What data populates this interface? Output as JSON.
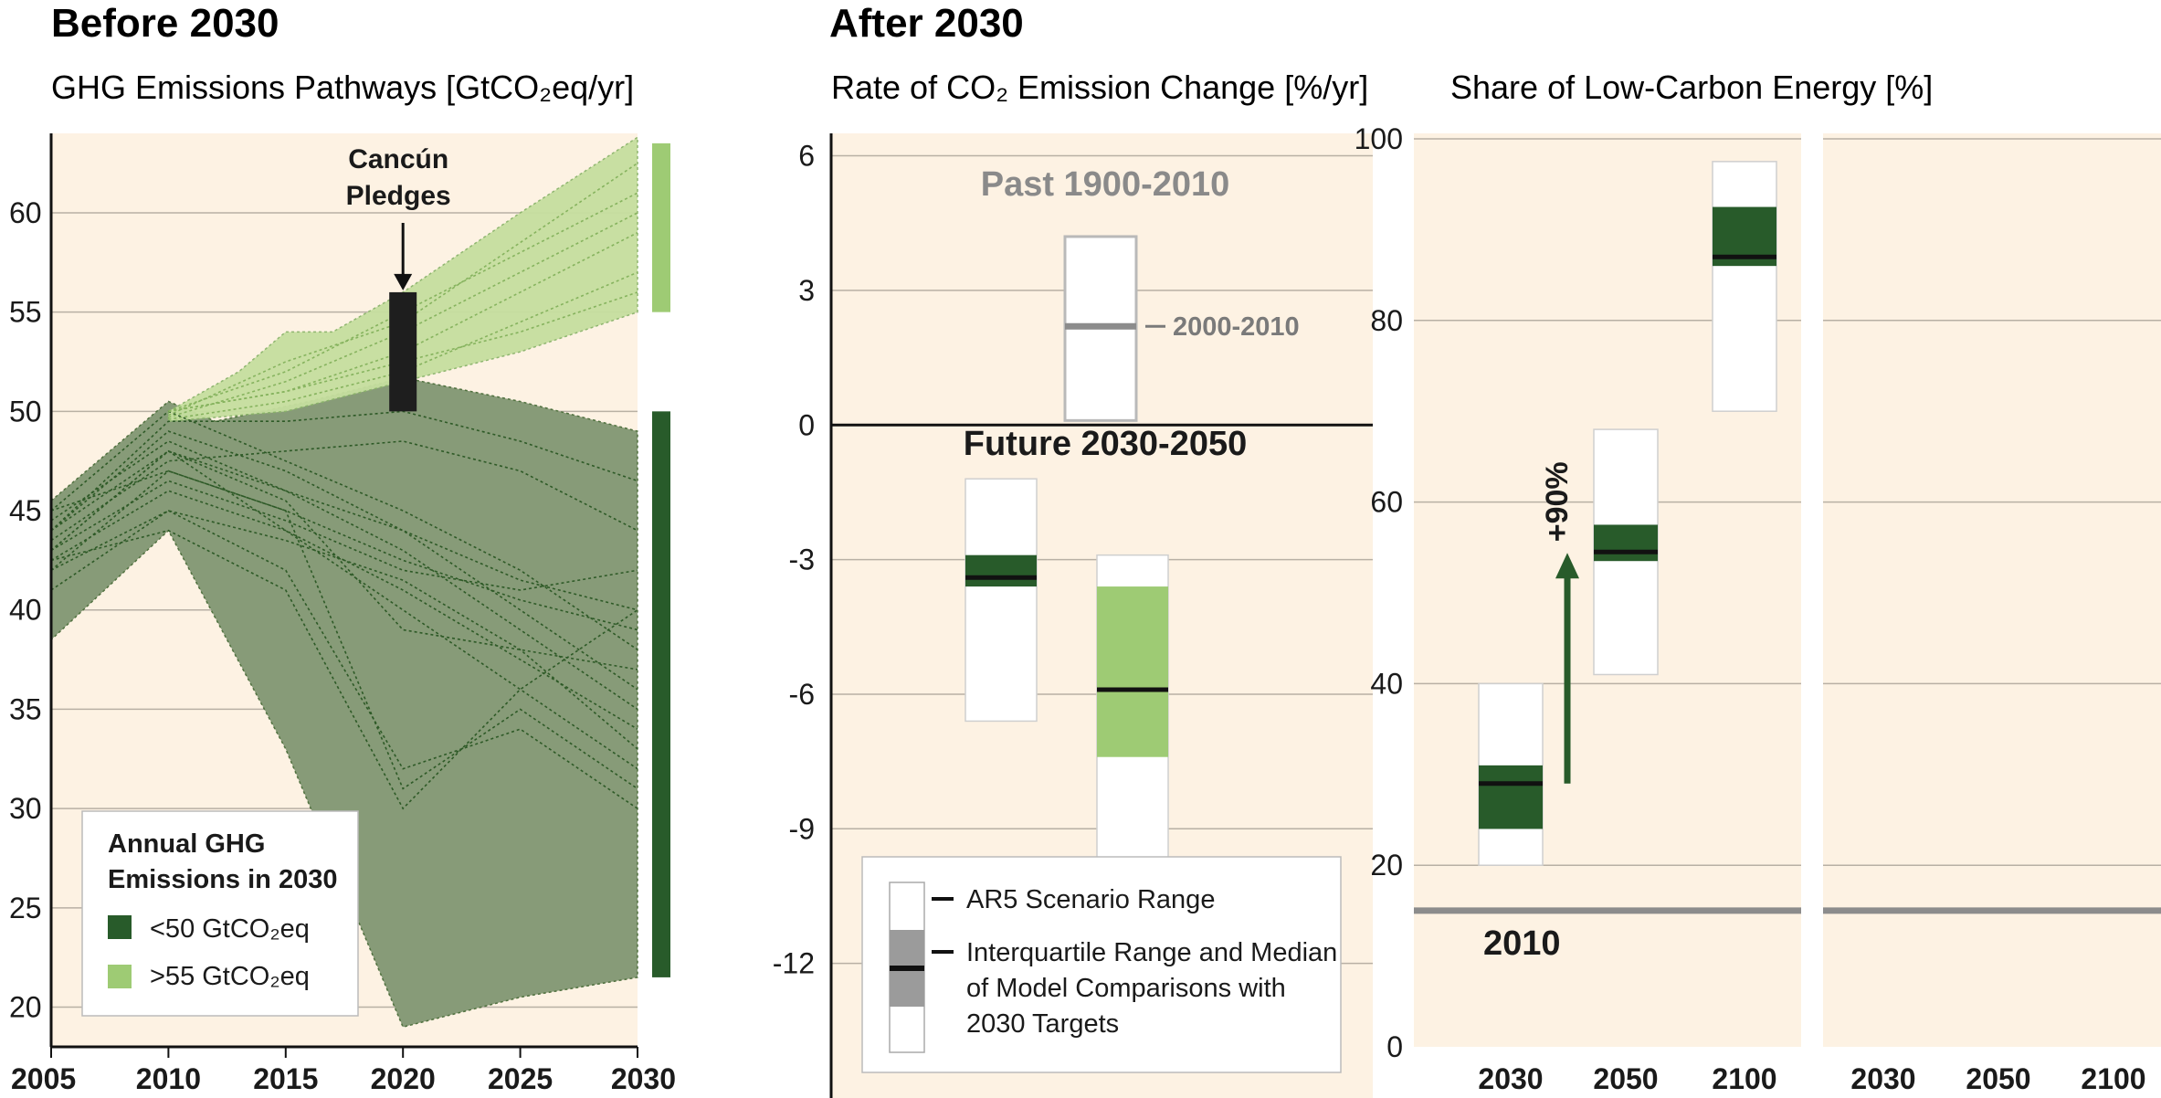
{
  "headers": {
    "before": "Before 2030",
    "after": "After 2030",
    "left_title": "GHG Emissions Pathways [GtCO₂eq/yr]",
    "mid_title": "Rate of CO₂ Emission Change [%/yr]",
    "right_title": "Share of Low-Carbon Energy [%]"
  },
  "colors": {
    "panel_bg": "#fdf2e3",
    "dark_green": "#285b2a",
    "light_green": "#9ecb74",
    "dark_band": "#879b78",
    "light_band": "#c6df9f",
    "grey": "#8c8c8c",
    "gridline": "#b8b0a4"
  },
  "chart_data": [
    {
      "id": "ghg",
      "type": "area",
      "title": "GHG Emissions Pathways [GtCO₂eq/yr]",
      "xlabel": "",
      "ylabel": "",
      "xlim": [
        2005,
        2030
      ],
      "ylim": [
        18,
        64
      ],
      "x_ticks": [
        2005,
        2010,
        2015,
        2020,
        2025,
        2030
      ],
      "y_ticks": [
        20,
        25,
        30,
        35,
        40,
        45,
        50,
        55,
        60
      ],
      "grid": true,
      "bands": [
        {
          "name": "<50 GtCO₂eq",
          "color": "#879b78",
          "upper": [
            [
              2005,
              45.5
            ],
            [
              2010,
              50.5
            ],
            [
              2012,
              49.5
            ],
            [
              2016,
              50.5
            ],
            [
              2020,
              51.7
            ],
            [
              2025,
              50.5
            ],
            [
              2030,
              49
            ]
          ],
          "lower": [
            [
              2005,
              38.5
            ],
            [
              2010,
              44
            ],
            [
              2015,
              33
            ],
            [
              2020,
              19
            ],
            [
              2025,
              20.5
            ],
            [
              2030,
              21.5
            ]
          ]
        },
        {
          "name": ">55 GtCO₂eq",
          "color": "#c6df9f",
          "upper": [
            [
              2010,
              50
            ],
            [
              2013,
              52
            ],
            [
              2015,
              54
            ],
            [
              2017,
              54
            ],
            [
              2020,
              56
            ],
            [
              2025,
              60
            ],
            [
              2030,
              63.8
            ]
          ],
          "lower": [
            [
              2010,
              49.5
            ],
            [
              2015,
              50
            ],
            [
              2020,
              51.5
            ],
            [
              2025,
              53
            ],
            [
              2030,
              55
            ]
          ]
        }
      ],
      "pathways_low": [
        [
          [
            2005,
            45
          ],
          [
            2010,
            50
          ],
          [
            2015,
            47.5
          ],
          [
            2020,
            45
          ],
          [
            2025,
            42
          ],
          [
            2030,
            38
          ]
        ],
        [
          [
            2005,
            44
          ],
          [
            2010,
            49
          ],
          [
            2015,
            47
          ],
          [
            2020,
            44
          ],
          [
            2025,
            40
          ],
          [
            2030,
            36
          ]
        ],
        [
          [
            2005,
            43
          ],
          [
            2010,
            48
          ],
          [
            2015,
            46
          ],
          [
            2020,
            43
          ],
          [
            2025,
            39
          ],
          [
            2030,
            35
          ]
        ],
        [
          [
            2005,
            44.5
          ],
          [
            2010,
            48.5
          ],
          [
            2015,
            46
          ],
          [
            2020,
            44
          ],
          [
            2025,
            41.5
          ],
          [
            2030,
            40
          ]
        ],
        [
          [
            2005,
            42
          ],
          [
            2010,
            47
          ],
          [
            2015,
            45
          ],
          [
            2020,
            42.5
          ],
          [
            2025,
            40.5
          ],
          [
            2030,
            39
          ]
        ],
        [
          [
            2005,
            43.5
          ],
          [
            2010,
            47.5
          ],
          [
            2015,
            48
          ],
          [
            2020,
            48.5
          ],
          [
            2025,
            47
          ],
          [
            2030,
            44
          ]
        ],
        [
          [
            2005,
            42.5
          ],
          [
            2010,
            46
          ],
          [
            2015,
            44
          ],
          [
            2020,
            41
          ],
          [
            2025,
            37.5
          ],
          [
            2030,
            34
          ]
        ],
        [
          [
            2005,
            41
          ],
          [
            2010,
            45
          ],
          [
            2015,
            43.5
          ],
          [
            2020,
            41.5
          ],
          [
            2025,
            38
          ],
          [
            2030,
            33
          ]
        ],
        [
          [
            2005,
            44
          ],
          [
            2010,
            49.5
          ],
          [
            2015,
            49.5
          ],
          [
            2020,
            50
          ],
          [
            2025,
            48.5
          ],
          [
            2030,
            46.5
          ]
        ],
        [
          [
            2005,
            43
          ],
          [
            2010,
            48
          ],
          [
            2015,
            44
          ],
          [
            2020,
            40
          ],
          [
            2025,
            36
          ],
          [
            2030,
            32
          ]
        ],
        [
          [
            2005,
            42
          ],
          [
            2010,
            45
          ],
          [
            2015,
            42
          ],
          [
            2020,
            32
          ],
          [
            2025,
            34
          ],
          [
            2030,
            30
          ]
        ],
        [
          [
            2005,
            45
          ],
          [
            2010,
            47
          ],
          [
            2015,
            45
          ],
          [
            2020,
            31
          ],
          [
            2025,
            35
          ],
          [
            2030,
            31
          ]
        ],
        [
          [
            2005,
            43
          ],
          [
            2010,
            46.5
          ],
          [
            2015,
            44.5
          ],
          [
            2020,
            42
          ],
          [
            2025,
            41
          ],
          [
            2030,
            42
          ]
        ],
        [
          [
            2005,
            44
          ],
          [
            2010,
            48
          ],
          [
            2015,
            45.5
          ],
          [
            2020,
            39
          ],
          [
            2025,
            38
          ],
          [
            2030,
            37
          ]
        ],
        [
          [
            2005,
            42.5
          ],
          [
            2010,
            44
          ],
          [
            2015,
            41
          ],
          [
            2020,
            30
          ],
          [
            2025,
            36
          ],
          [
            2030,
            40
          ]
        ]
      ],
      "pathways_high": [
        [
          [
            2010,
            50
          ],
          [
            2015,
            52
          ],
          [
            2020,
            55
          ],
          [
            2025,
            58
          ],
          [
            2030,
            61
          ]
        ],
        [
          [
            2010,
            49.7
          ],
          [
            2015,
            51.5
          ],
          [
            2020,
            54
          ],
          [
            2025,
            57
          ],
          [
            2030,
            60
          ]
        ],
        [
          [
            2010,
            50
          ],
          [
            2015,
            51
          ],
          [
            2020,
            53
          ],
          [
            2025,
            56
          ],
          [
            2030,
            59
          ]
        ],
        [
          [
            2010,
            49.6
          ],
          [
            2015,
            50.5
          ],
          [
            2020,
            52
          ],
          [
            2025,
            54.5
          ],
          [
            2030,
            57
          ]
        ],
        [
          [
            2010,
            49.8
          ],
          [
            2015,
            52.5
          ],
          [
            2020,
            54.5
          ],
          [
            2025,
            58.5
          ],
          [
            2030,
            62.5
          ]
        ],
        [
          [
            2010,
            50
          ],
          [
            2015,
            51
          ],
          [
            2020,
            52.5
          ],
          [
            2025,
            54
          ],
          [
            2030,
            56
          ]
        ]
      ],
      "pledges": {
        "label_line1": "Cancún",
        "label_line2": "Pledges",
        "x": 2020,
        "low": 50,
        "high": 56
      },
      "right_bars": [
        {
          "low": 21.5,
          "high": 50,
          "color": "#285b2a"
        },
        {
          "low": 55,
          "high": 63.5,
          "color": "#9ecb74"
        }
      ],
      "legend": {
        "title_line1": "Annual GHG",
        "title_line2": "Emissions in 2030",
        "items": [
          {
            "label": "<50 GtCO₂eq",
            "color": "#285b2a"
          },
          {
            "label": ">55 GtCO₂eq",
            "color": "#9ecb74"
          }
        ]
      }
    },
    {
      "id": "rate",
      "type": "bar",
      "title": "Rate of CO₂ Emission Change [%/yr]",
      "ylim": [
        -15,
        6.5
      ],
      "y_ticks": [
        6,
        3,
        0,
        -3,
        -6,
        -9,
        -12
      ],
      "grid": true,
      "past_label": "Past 1900-2010",
      "future_label": "Future 2030-2050",
      "past_box": {
        "low": 0.1,
        "high": 4.2,
        "marker": 2.2,
        "marker_label": "2000-2010"
      },
      "future_boxes": [
        {
          "range": [
            -6.6,
            -1.2
          ],
          "iqr": [
            -3.6,
            -2.9
          ],
          "median": -3.4,
          "color": "#285b2a"
        },
        {
          "range": [
            -9.8,
            -2.9
          ],
          "iqr": [
            -7.4,
            -3.6
          ],
          "median": -5.9,
          "color": "#9ecb74"
        }
      ],
      "legend": {
        "item1": "AR5 Scenario Range",
        "item2_line1": "Interquartile Range and Median",
        "item2_line2": "of Model Comparisons with",
        "item2_line3": "2030 Targets"
      }
    },
    {
      "id": "lowcarbon",
      "type": "bar",
      "title": "Share of Low-Carbon Energy [%]",
      "ylim": [
        0,
        100
      ],
      "y_ticks": [
        0,
        20,
        40,
        60,
        80,
        100
      ],
      "categories": [
        "2030",
        "2050",
        "2100"
      ],
      "boxes": [
        {
          "range": [
            20,
            40
          ],
          "iqr": [
            24,
            31
          ],
          "median": 29
        },
        {
          "range": [
            41,
            68
          ],
          "iqr": [
            53.5,
            57.5
          ],
          "median": 54.5
        },
        {
          "range": [
            70,
            97.5
          ],
          "iqr": [
            86,
            92.5
          ],
          "median": 87
        }
      ],
      "baseline": {
        "value": 15,
        "label": "2010"
      },
      "arrow": {
        "from": 29,
        "to": 54,
        "label": "+90%"
      },
      "second_panel_categories": [
        "2030",
        "2050",
        "2100"
      ]
    }
  ]
}
